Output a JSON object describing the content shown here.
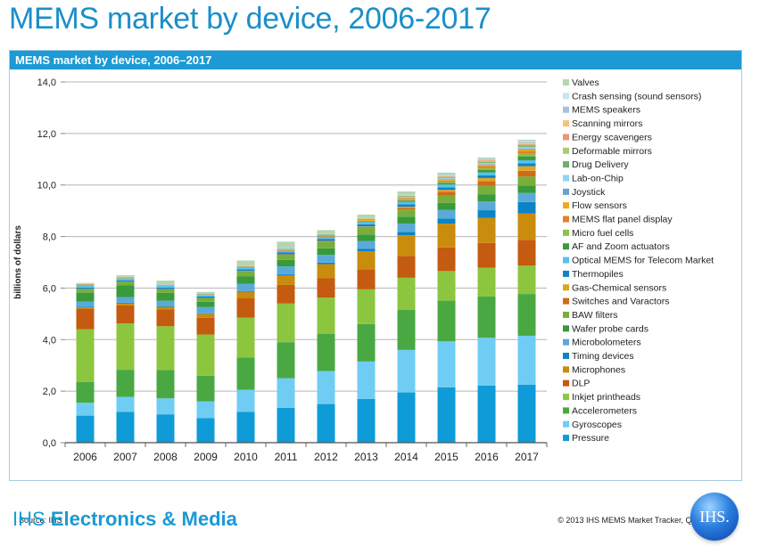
{
  "slide": {
    "title": "MEMS market by device, 2006-2017",
    "brand_prefix": "IHS",
    "brand_name": "Electronics & Media",
    "logo_text": "IHS."
  },
  "chart_data": {
    "type": "bar",
    "stacked": true,
    "title": "MEMS market by device, 2006–2017",
    "xlabel": "",
    "ylabel": "billions of dollars",
    "ylim": [
      0,
      14
    ],
    "yticks": [
      "0,0",
      "2,0",
      "4,0",
      "6,0",
      "8,0",
      "10,0",
      "12,0",
      "14,0"
    ],
    "ytick_values": [
      0,
      2,
      4,
      6,
      8,
      10,
      12,
      14
    ],
    "grid": true,
    "legend_position": "right",
    "source": "Source: IHS",
    "copyright": "© 2013 IHS   MEMS Market Tracker, Q3 2013",
    "categories": [
      "2006",
      "2007",
      "2008",
      "2009",
      "2010",
      "2011",
      "2012",
      "2013",
      "2014",
      "2015",
      "2016",
      "2017"
    ],
    "series": [
      {
        "name": "Pressure",
        "color": "#0f9bd7",
        "values": [
          1.05,
          1.2,
          1.1,
          0.95,
          1.2,
          1.35,
          1.5,
          1.7,
          1.95,
          2.15,
          2.22,
          2.25
        ]
      },
      {
        "name": "Gyroscopes",
        "color": "#6fcdf4",
        "values": [
          0.5,
          0.58,
          0.62,
          0.65,
          0.85,
          1.15,
          1.28,
          1.45,
          1.65,
          1.78,
          1.85,
          1.9
        ]
      },
      {
        "name": "Accelerometers",
        "color": "#4aa843",
        "values": [
          0.8,
          1.05,
          1.1,
          1.0,
          1.25,
          1.4,
          1.45,
          1.45,
          1.55,
          1.58,
          1.6,
          1.62
        ]
      },
      {
        "name": "Inkjet printheads",
        "color": "#8cc63f",
        "values": [
          2.05,
          1.8,
          1.7,
          1.6,
          1.55,
          1.5,
          1.4,
          1.35,
          1.25,
          1.15,
          1.12,
          1.1
        ]
      },
      {
        "name": "DLP",
        "color": "#c55a11",
        "values": [
          0.8,
          0.7,
          0.65,
          0.65,
          0.75,
          0.72,
          0.75,
          0.78,
          0.85,
          0.92,
          0.96,
          1.0
        ]
      },
      {
        "name": "Microphones",
        "color": "#c98c0c",
        "values": [
          0.05,
          0.08,
          0.1,
          0.15,
          0.25,
          0.38,
          0.55,
          0.7,
          0.8,
          0.92,
          0.97,
          1.02
        ]
      },
      {
        "name": "Timing devices",
        "color": "#0c84c4",
        "values": [
          0.02,
          0.02,
          0.02,
          0.02,
          0.03,
          0.04,
          0.06,
          0.1,
          0.13,
          0.2,
          0.3,
          0.45
        ]
      },
      {
        "name": "Microbolometers",
        "color": "#5aaad9",
        "values": [
          0.2,
          0.22,
          0.22,
          0.25,
          0.28,
          0.3,
          0.3,
          0.3,
          0.32,
          0.33,
          0.34,
          0.35
        ]
      },
      {
        "name": "Wafer probe cards",
        "color": "#389a3a",
        "values": [
          0.35,
          0.45,
          0.3,
          0.2,
          0.3,
          0.25,
          0.25,
          0.25,
          0.27,
          0.28,
          0.28,
          0.29
        ]
      },
      {
        "name": "BAW filters",
        "color": "#78ae3c",
        "values": [
          0.15,
          0.15,
          0.15,
          0.15,
          0.2,
          0.2,
          0.25,
          0.25,
          0.28,
          0.3,
          0.33,
          0.35
        ]
      },
      {
        "name": "Switches and Varactors",
        "color": "#d0691c",
        "values": [
          0.0,
          0.0,
          0.0,
          0.0,
          0.0,
          0.01,
          0.02,
          0.03,
          0.06,
          0.12,
          0.18,
          0.22
        ]
      },
      {
        "name": "Gas-Chemical sensors",
        "color": "#dea620",
        "values": [
          0.0,
          0.0,
          0.0,
          0.0,
          0.01,
          0.01,
          0.02,
          0.03,
          0.05,
          0.08,
          0.12,
          0.18
        ]
      },
      {
        "name": "Thermopiles",
        "color": "#1480c8",
        "values": [
          0.05,
          0.05,
          0.05,
          0.05,
          0.06,
          0.07,
          0.08,
          0.08,
          0.09,
          0.1,
          0.1,
          0.11
        ]
      },
      {
        "name": "Optical MEMS for Telecom Market",
        "color": "#55c2ee",
        "values": [
          0.1,
          0.08,
          0.08,
          0.06,
          0.08,
          0.08,
          0.08,
          0.09,
          0.1,
          0.11,
          0.12,
          0.12
        ]
      },
      {
        "name": "AF and Zoom actuators",
        "color": "#3d9a3c",
        "values": [
          0.0,
          0.0,
          0.0,
          0.0,
          0.0,
          0.0,
          0.01,
          0.02,
          0.04,
          0.06,
          0.1,
          0.15
        ]
      },
      {
        "name": "Micro fuel cells",
        "color": "#8bc34a",
        "values": [
          0.0,
          0.0,
          0.0,
          0.0,
          0.0,
          0.0,
          0.0,
          0.01,
          0.02,
          0.04,
          0.06,
          0.1
        ]
      },
      {
        "name": "MEMS flat panel display",
        "color": "#e87d2a",
        "values": [
          0.0,
          0.0,
          0.0,
          0.0,
          0.0,
          0.01,
          0.01,
          0.02,
          0.03,
          0.05,
          0.08,
          0.12
        ]
      },
      {
        "name": "Flow sensors",
        "color": "#f0a81d",
        "values": [
          0.03,
          0.03,
          0.03,
          0.03,
          0.03,
          0.04,
          0.04,
          0.04,
          0.05,
          0.05,
          0.06,
          0.06
        ]
      },
      {
        "name": "Joystick",
        "color": "#6b9fd0",
        "values": [
          0.01,
          0.01,
          0.01,
          0.01,
          0.01,
          0.01,
          0.01,
          0.01,
          0.02,
          0.02,
          0.02,
          0.02
        ]
      },
      {
        "name": "Lab-on-Chip",
        "color": "#8fd3f5",
        "values": [
          0.01,
          0.01,
          0.01,
          0.01,
          0.01,
          0.01,
          0.02,
          0.02,
          0.03,
          0.04,
          0.05,
          0.07
        ]
      },
      {
        "name": "Drug Delivery",
        "color": "#6fae6a",
        "values": [
          0.0,
          0.0,
          0.0,
          0.0,
          0.0,
          0.0,
          0.01,
          0.01,
          0.02,
          0.03,
          0.04,
          0.05
        ]
      },
      {
        "name": "Deformable mirrors",
        "color": "#a4cf79",
        "values": [
          0.0,
          0.0,
          0.0,
          0.0,
          0.0,
          0.0,
          0.0,
          0.01,
          0.01,
          0.02,
          0.02,
          0.03
        ]
      },
      {
        "name": "Energy scavengers",
        "color": "#ef9477",
        "values": [
          0.0,
          0.0,
          0.0,
          0.0,
          0.0,
          0.0,
          0.0,
          0.0,
          0.01,
          0.01,
          0.02,
          0.03
        ]
      },
      {
        "name": "Scanning mirrors",
        "color": "#f7c17e",
        "values": [
          0.01,
          0.01,
          0.01,
          0.01,
          0.01,
          0.01,
          0.02,
          0.02,
          0.02,
          0.03,
          0.04,
          0.05
        ]
      },
      {
        "name": "MEMS speakers",
        "color": "#a6c2e0",
        "values": [
          0.0,
          0.0,
          0.0,
          0.0,
          0.0,
          0.0,
          0.0,
          0.0,
          0.01,
          0.02,
          0.03,
          0.04
        ]
      },
      {
        "name": "Crash sensing (sound sensors)",
        "color": "#c6e5f5",
        "values": [
          0.0,
          0.0,
          0.0,
          0.0,
          0.0,
          0.0,
          0.0,
          0.0,
          0.01,
          0.01,
          0.02,
          0.03
        ]
      },
      {
        "name": "Valves",
        "color": "#b3d6b1",
        "values": [
          0.02,
          0.06,
          0.14,
          0.06,
          0.2,
          0.26,
          0.14,
          0.13,
          0.13,
          0.08,
          0.04,
          0.05
        ]
      }
    ]
  }
}
